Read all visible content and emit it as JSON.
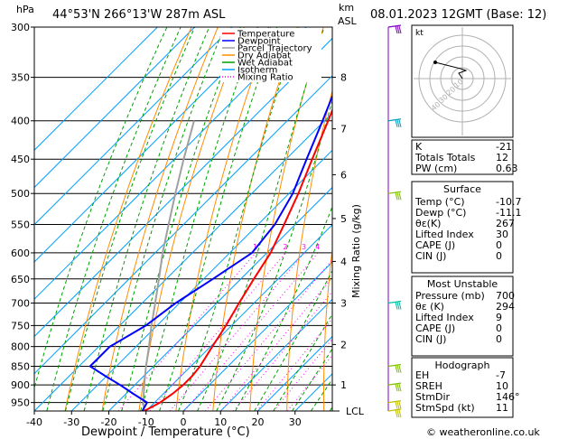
{
  "header": {
    "hpa_label": "hPa",
    "location": "44°53'N  266°13'W  287m  ASL",
    "km_label": "km",
    "asl_label": "ASL",
    "datetime": "08.01.2023  12GMT  (Base: 12)"
  },
  "skewt": {
    "xlabel": "Dewpoint / Temperature (°C)",
    "mixing_label": "Mixing Ratio (g/kg)",
    "x_ticks": [
      -40,
      -30,
      -20,
      -10,
      0,
      10,
      20,
      30
    ],
    "pressure_levels": [
      300,
      350,
      400,
      450,
      500,
      550,
      600,
      650,
      700,
      750,
      800,
      850,
      900,
      950
    ],
    "xlim": [
      -40,
      40
    ],
    "ylim": [
      1000,
      300
    ],
    "km_ticks": [
      {
        "label": "8",
        "p": 350
      },
      {
        "label": "7",
        "p": 410
      },
      {
        "label": "6",
        "p": 472
      },
      {
        "label": "5",
        "p": 540
      },
      {
        "label": "4",
        "p": 616
      },
      {
        "label": "3",
        "p": 700
      },
      {
        "label": "2",
        "p": 795
      },
      {
        "label": "1",
        "p": 900
      }
    ],
    "lcl_label": "LCL",
    "lcl_p": 975,
    "mixing_ratio_values": [
      "1",
      "2",
      "3",
      "4",
      "6",
      "8",
      "10",
      "15",
      "20",
      "25"
    ],
    "legend": [
      {
        "label": "Temperature",
        "color": "#ff0000",
        "dotted": false
      },
      {
        "label": "Dewpoint",
        "color": "#0000ff",
        "dotted": false
      },
      {
        "label": "Parcel Trajectory",
        "color": "#a0a0a0",
        "dotted": false
      },
      {
        "label": "Dry Adiabat",
        "color": "#ff8c00",
        "dotted": false
      },
      {
        "label": "Wet Adiabat",
        "color": "#00a000",
        "dotted": false
      },
      {
        "label": "Isotherm",
        "color": "#00a0ff",
        "dotted": false
      },
      {
        "label": "Mixing Ratio",
        "color": "#ff00ff",
        "dotted": true
      }
    ],
    "colors": {
      "temperature": "#ff0000",
      "dewpoint": "#0000ff",
      "parcel": "#a0a0a0",
      "dry_adiabat": "#ff8c00",
      "wet_adiabat": "#00a000",
      "isotherm": "#00a0ff",
      "mixing_ratio": "#ff00ff"
    }
  },
  "chart_data": {
    "type": "line",
    "title": "44°53'N  266°13'W  287m  ASL",
    "xlabel": "Dewpoint / Temperature (°C)",
    "ylabel": "hPa",
    "series": [
      {
        "name": "Temperature",
        "points": [
          [
            975,
            -10.5
          ],
          [
            950,
            -8.5
          ],
          [
            925,
            -7.5
          ],
          [
            900,
            -7.0
          ],
          [
            875,
            -7.0
          ],
          [
            850,
            -7.5
          ],
          [
            800,
            -9.5
          ],
          [
            750,
            -11.5
          ],
          [
            700,
            -14.0
          ],
          [
            650,
            -16.5
          ],
          [
            600,
            -19.0
          ],
          [
            550,
            -23.0
          ],
          [
            500,
            -27.5
          ],
          [
            450,
            -33.0
          ],
          [
            400,
            -39.0
          ],
          [
            350,
            -46.0
          ],
          [
            300,
            -53.0
          ]
        ]
      },
      {
        "name": "Dewpoint",
        "points": [
          [
            975,
            -11.0
          ],
          [
            950,
            -12.0
          ],
          [
            925,
            -18.0
          ],
          [
            900,
            -24.0
          ],
          [
            875,
            -30.5
          ],
          [
            850,
            -37.0
          ],
          [
            800,
            -37.0
          ],
          [
            750,
            -33.0
          ],
          [
            700,
            -31.0
          ],
          [
            650,
            -27.5
          ],
          [
            600,
            -24.0
          ],
          [
            550,
            -25.5
          ],
          [
            500,
            -29.0
          ],
          [
            450,
            -34.5
          ],
          [
            400,
            -40.5
          ],
          [
            350,
            -47.5
          ],
          [
            300,
            -54.0
          ]
        ]
      },
      {
        "name": "Parcel Trajectory",
        "points": [
          [
            975,
            -10.5
          ],
          [
            950,
            -13.0
          ],
          [
            900,
            -17.5
          ],
          [
            850,
            -22.0
          ],
          [
            800,
            -26.5
          ],
          [
            750,
            -31.5
          ],
          [
            700,
            -36.5
          ],
          [
            650,
            -42.0
          ],
          [
            600,
            -48.0
          ],
          [
            550,
            -54.0
          ],
          [
            500,
            -60.5
          ],
          [
            450,
            -67.5
          ],
          [
            400,
            -75.0
          ]
        ]
      }
    ],
    "ylim": [
      1000,
      300
    ],
    "xlim": [
      -40,
      40
    ]
  },
  "wind_barbs": [
    {
      "p": 300,
      "color": "#8000c0"
    },
    {
      "p": 400,
      "color": "#00a0c0"
    },
    {
      "p": 500,
      "color": "#80c000"
    },
    {
      "p": 700,
      "color": "#00c0a0"
    },
    {
      "p": 850,
      "color": "#80c000"
    },
    {
      "p": 900,
      "color": "#80c000"
    },
    {
      "p": 950,
      "color": "#c0c000"
    },
    {
      "p": 975,
      "color": "#c0c000"
    }
  ],
  "hodograph": {
    "label": "kt",
    "ring_labels": [
      "10",
      "20",
      "30",
      "40"
    ]
  },
  "indices": {
    "rows": [
      {
        "label": "K",
        "value": "-21"
      },
      {
        "label": "Totals Totals",
        "value": "12"
      },
      {
        "label": "PW (cm)",
        "value": "0.63"
      }
    ]
  },
  "surface": {
    "title": "Surface",
    "rows": [
      {
        "label": "Temp (°C)",
        "value": "-10.7"
      },
      {
        "label": "Dewp (°C)",
        "value": "-11.1"
      },
      {
        "label": "θε(K)",
        "value": "267"
      },
      {
        "label": "Lifted Index",
        "value": "30"
      },
      {
        "label": "CAPE (J)",
        "value": "0"
      },
      {
        "label": "CIN (J)",
        "value": "0"
      }
    ]
  },
  "most_unstable": {
    "title": "Most Unstable",
    "rows": [
      {
        "label": "Pressure (mb)",
        "value": "700"
      },
      {
        "label": "θε (K)",
        "value": "294"
      },
      {
        "label": "Lifted Index",
        "value": "9"
      },
      {
        "label": "CAPE (J)",
        "value": "0"
      },
      {
        "label": "CIN (J)",
        "value": "0"
      }
    ]
  },
  "hodograph_table": {
    "title": "Hodograph",
    "rows": [
      {
        "label": "EH",
        "value": "-7"
      },
      {
        "label": "SREH",
        "value": "10"
      },
      {
        "label": "StmDir",
        "value": "146°"
      },
      {
        "label": "StmSpd (kt)",
        "value": "11"
      }
    ]
  },
  "footer": {
    "copyright": "© weatheronline.co.uk"
  }
}
